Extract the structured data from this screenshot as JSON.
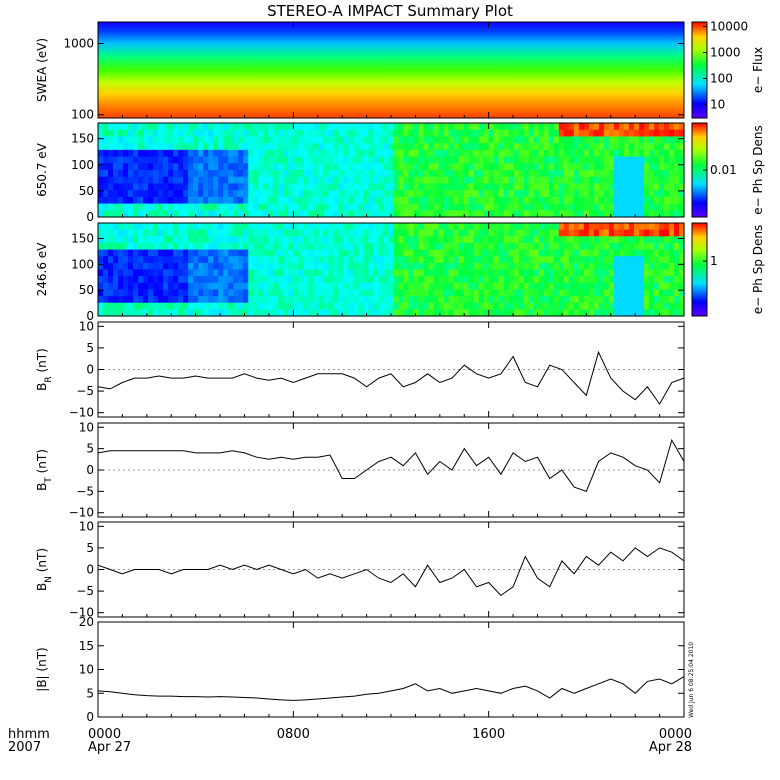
{
  "title": "STEREO-A IMPACT Summary Plot",
  "stamp": "Wed Jun 6 08:25:04 2010",
  "time_axis": {
    "row_label_1": "hhmm",
    "row_label_2": "2007",
    "ticks": [
      {
        "hours": 0,
        "label": "0000",
        "date": "Apr 27"
      },
      {
        "hours": 8,
        "label": "0800",
        "date": ""
      },
      {
        "hours": 16,
        "label": "1600",
        "date": ""
      },
      {
        "hours": 24,
        "label": "0000",
        "date": "Apr 28"
      }
    ],
    "range_hours": [
      0,
      24
    ]
  },
  "chart_data": [
    {
      "type": "heatmap",
      "ylabel": "SWEA (eV)",
      "yscale": "log",
      "ylim": [
        90,
        2000
      ],
      "yticks": [
        {
          "value": 100,
          "label": "100"
        },
        {
          "value": 1000,
          "label": "1000"
        }
      ],
      "colorbar": {
        "label": "e− Flux",
        "scale": "log",
        "ticks": [
          {
            "value": 10,
            "label": "10"
          },
          {
            "value": 100,
            "label": "100"
          },
          {
            "value": 1000,
            "label": "1000"
          },
          {
            "value": 10000,
            "label": "10000"
          }
        ]
      }
    },
    {
      "type": "heatmap",
      "ylabel": "650.7 eV",
      "ylim": [
        0,
        180
      ],
      "yticks": [
        {
          "value": 0,
          "label": "0"
        },
        {
          "value": 50,
          "label": "50"
        },
        {
          "value": 100,
          "label": "100"
        },
        {
          "value": 150,
          "label": "150"
        }
      ],
      "colorbar": {
        "label": "e− Ph Sp Dens",
        "scale": "log",
        "ticks": [
          {
            "value": 0.01,
            "label": "0.01"
          }
        ]
      }
    },
    {
      "type": "heatmap",
      "ylabel": "246.6 eV",
      "ylim": [
        0,
        180
      ],
      "yticks": [
        {
          "value": 0,
          "label": "0"
        },
        {
          "value": 50,
          "label": "50"
        },
        {
          "value": 100,
          "label": "100"
        },
        {
          "value": 150,
          "label": "150"
        }
      ],
      "colorbar": {
        "label": "e− Ph Sp Dens",
        "scale": "log",
        "ticks": [
          {
            "value": 1,
            "label": "1"
          }
        ]
      }
    },
    {
      "type": "line",
      "ylabel": "B",
      "ylabel_sub": "R",
      "ylabel_unit": " (nT)",
      "ylim": [
        -11,
        11
      ],
      "yticks": [
        {
          "value": -10,
          "label": "−10"
        },
        {
          "value": -5,
          "label": "−5"
        },
        {
          "value": 0,
          "label": "0"
        },
        {
          "value": 5,
          "label": "5"
        },
        {
          "value": 10,
          "label": "10"
        }
      ],
      "x": [
        0,
        0.5,
        1,
        1.5,
        2,
        2.5,
        3,
        3.5,
        4,
        4.5,
        5,
        5.5,
        6,
        6.5,
        7,
        7.5,
        8,
        8.5,
        9,
        9.5,
        10,
        10.5,
        11,
        11.5,
        12,
        12.5,
        13,
        13.5,
        14,
        14.5,
        15,
        15.5,
        16,
        16.5,
        17,
        17.5,
        18,
        18.5,
        19,
        19.5,
        20,
        20.5,
        21,
        21.5,
        22,
        22.5,
        23,
        23.5,
        24
      ],
      "y": [
        -4,
        -4.5,
        -3,
        -2,
        -2,
        -1.5,
        -2,
        -2,
        -1.5,
        -2,
        -2,
        -2,
        -1,
        -2,
        -2.5,
        -2,
        -3,
        -2,
        -1,
        -1,
        -1,
        -2,
        -4,
        -2,
        -1,
        -4,
        -3,
        -1,
        -3,
        -2,
        1,
        -1,
        -2,
        -1,
        3,
        -3,
        -4,
        1,
        0,
        -3,
        -6,
        4,
        -2,
        -5,
        -7,
        -4,
        -8,
        -3,
        -2
      ]
    },
    {
      "type": "line",
      "ylabel": "B",
      "ylabel_sub": "T",
      "ylabel_unit": " (nT)",
      "ylim": [
        -11,
        11
      ],
      "yticks": [
        {
          "value": -10,
          "label": "−10"
        },
        {
          "value": -5,
          "label": "−5"
        },
        {
          "value": 0,
          "label": "0"
        },
        {
          "value": 5,
          "label": "5"
        },
        {
          "value": 10,
          "label": "10"
        }
      ],
      "x": [
        0,
        0.5,
        1,
        1.5,
        2,
        2.5,
        3,
        3.5,
        4,
        4.5,
        5,
        5.5,
        6,
        6.5,
        7,
        7.5,
        8,
        8.5,
        9,
        9.5,
        10,
        10.5,
        11,
        11.5,
        12,
        12.5,
        13,
        13.5,
        14,
        14.5,
        15,
        15.5,
        16,
        16.5,
        17,
        17.5,
        18,
        18.5,
        19,
        19.5,
        20,
        20.5,
        21,
        21.5,
        22,
        22.5,
        23,
        23.5,
        24
      ],
      "y": [
        4,
        4.5,
        4.5,
        4.5,
        4.5,
        4.5,
        4.5,
        4.5,
        4,
        4,
        4,
        4.5,
        4,
        3,
        2.5,
        3,
        2.5,
        3,
        3,
        3.5,
        -2,
        -2,
        0,
        2,
        3,
        1,
        4,
        -1,
        2,
        0,
        5,
        1,
        3,
        -1,
        4,
        2,
        3,
        -2,
        0,
        -4,
        -5,
        2,
        4,
        3,
        1,
        0,
        -3,
        7,
        2
      ]
    },
    {
      "type": "line",
      "ylabel": "B",
      "ylabel_sub": "N",
      "ylabel_unit": " (nT)",
      "ylim": [
        -11,
        11
      ],
      "yticks": [
        {
          "value": -10,
          "label": "−10"
        },
        {
          "value": -5,
          "label": "−5"
        },
        {
          "value": 0,
          "label": "0"
        },
        {
          "value": 5,
          "label": "5"
        },
        {
          "value": 10,
          "label": "10"
        }
      ],
      "x": [
        0,
        0.5,
        1,
        1.5,
        2,
        2.5,
        3,
        3.5,
        4,
        4.5,
        5,
        5.5,
        6,
        6.5,
        7,
        7.5,
        8,
        8.5,
        9,
        9.5,
        10,
        10.5,
        11,
        11.5,
        12,
        12.5,
        13,
        13.5,
        14,
        14.5,
        15,
        15.5,
        16,
        16.5,
        17,
        17.5,
        18,
        18.5,
        19,
        19.5,
        20,
        20.5,
        21,
        21.5,
        22,
        22.5,
        23,
        23.5,
        24
      ],
      "y": [
        1,
        0,
        -1,
        0,
        0,
        0,
        -1,
        0,
        0,
        0,
        1,
        0,
        1,
        0,
        1,
        0,
        -1,
        0,
        -2,
        -1,
        -2,
        -1,
        0,
        -2,
        -3,
        -1,
        -4,
        1,
        -3,
        -2,
        0,
        -4,
        -3,
        -6,
        -4,
        3,
        -2,
        -4,
        2,
        -1,
        3,
        1,
        4,
        2,
        5,
        3,
        5,
        4,
        2
      ]
    },
    {
      "type": "line",
      "ylabel": "|B| (nT)",
      "ylim": [
        0,
        20
      ],
      "yticks": [
        {
          "value": 0,
          "label": "0"
        },
        {
          "value": 5,
          "label": "5"
        },
        {
          "value": 10,
          "label": "10"
        },
        {
          "value": 15,
          "label": "15"
        },
        {
          "value": 20,
          "label": "20"
        }
      ],
      "x": [
        0,
        0.5,
        1,
        1.5,
        2,
        2.5,
        3,
        3.5,
        4,
        4.5,
        5,
        5.5,
        6,
        6.5,
        7,
        7.5,
        8,
        8.5,
        9,
        9.5,
        10,
        10.5,
        11,
        11.5,
        12,
        12.5,
        13,
        13.5,
        14,
        14.5,
        15,
        15.5,
        16,
        16.5,
        17,
        17.5,
        18,
        18.5,
        19,
        19.5,
        20,
        20.5,
        21,
        21.5,
        22,
        22.5,
        23,
        23.5,
        24
      ],
      "y": [
        5.5,
        5.3,
        5,
        4.7,
        4.5,
        4.4,
        4.4,
        4.3,
        4.3,
        4.2,
        4.3,
        4.2,
        4.1,
        4.0,
        3.8,
        3.6,
        3.5,
        3.6,
        3.8,
        4.0,
        4.2,
        4.4,
        4.8,
        5.0,
        5.5,
        6.0,
        7.0,
        5.5,
        6.0,
        5.0,
        5.5,
        6.0,
        5.5,
        5.0,
        6.0,
        6.5,
        5.5,
        4.0,
        6.0,
        5.0,
        6.0,
        7.0,
        8.0,
        7.0,
        5.0,
        7.5,
        8.0,
        7.0,
        8.5
      ]
    }
  ]
}
